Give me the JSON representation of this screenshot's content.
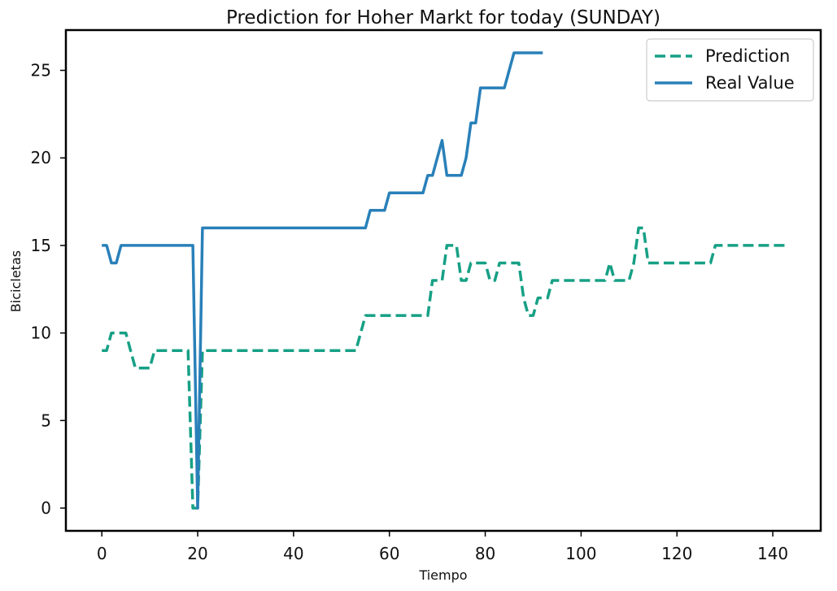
{
  "chart_data": {
    "type": "line",
    "title": "Prediction for Hoher Markt for today (SUNDAY)",
    "xlabel": "Tiempo",
    "ylabel": "Bicicletas",
    "xlim": [
      -7.5,
      150
    ],
    "ylim": [
      -1.3,
      27.3
    ],
    "xticks": [
      0,
      20,
      40,
      60,
      80,
      100,
      120,
      140
    ],
    "yticks": [
      0,
      5,
      10,
      15,
      20,
      25
    ],
    "grid": false,
    "legend_position": "top-right",
    "series": [
      {
        "name": "Prediction",
        "color": "#16a085",
        "style": "dashed",
        "points": [
          [
            0,
            9
          ],
          [
            1,
            9
          ],
          [
            2,
            10
          ],
          [
            3,
            10
          ],
          [
            4,
            10
          ],
          [
            5,
            10
          ],
          [
            6,
            9
          ],
          [
            7,
            8
          ],
          [
            8,
            8
          ],
          [
            9,
            8
          ],
          [
            10,
            8
          ],
          [
            11,
            9
          ],
          [
            12,
            9
          ],
          [
            13,
            9
          ],
          [
            14,
            9
          ],
          [
            15,
            9
          ],
          [
            16,
            9
          ],
          [
            17,
            9
          ],
          [
            18,
            9
          ],
          [
            19,
            0
          ],
          [
            20,
            0
          ],
          [
            21,
            9
          ],
          [
            22,
            9
          ],
          [
            30,
            9
          ],
          [
            40,
            9
          ],
          [
            50,
            9
          ],
          [
            53,
            9
          ],
          [
            54,
            10
          ],
          [
            55,
            11
          ],
          [
            56,
            11
          ],
          [
            60,
            11
          ],
          [
            65,
            11
          ],
          [
            68,
            11
          ],
          [
            69,
            13
          ],
          [
            70,
            13
          ],
          [
            71,
            13
          ],
          [
            72,
            15
          ],
          [
            73,
            15
          ],
          [
            74,
            15
          ],
          [
            75,
            13
          ],
          [
            76,
            13
          ],
          [
            77,
            14
          ],
          [
            78,
            14
          ],
          [
            79,
            14
          ],
          [
            80,
            14
          ],
          [
            81,
            13
          ],
          [
            82,
            13
          ],
          [
            83,
            14
          ],
          [
            84,
            14
          ],
          [
            85,
            14
          ],
          [
            86,
            14
          ],
          [
            87,
            14
          ],
          [
            88,
            12
          ],
          [
            89,
            11
          ],
          [
            90,
            11
          ],
          [
            91,
            12
          ],
          [
            92,
            12
          ],
          [
            93,
            12
          ],
          [
            94,
            13
          ],
          [
            95,
            13
          ],
          [
            100,
            13
          ],
          [
            105,
            13
          ],
          [
            106,
            14
          ],
          [
            107,
            13
          ],
          [
            108,
            13
          ],
          [
            109,
            13
          ],
          [
            110,
            13
          ],
          [
            111,
            14
          ],
          [
            112,
            16
          ],
          [
            113,
            16
          ],
          [
            114,
            14
          ],
          [
            115,
            14
          ],
          [
            120,
            14
          ],
          [
            125,
            14
          ],
          [
            127,
            14
          ],
          [
            128,
            15
          ],
          [
            129,
            15
          ],
          [
            135,
            15
          ],
          [
            140,
            15
          ],
          [
            143,
            15
          ]
        ]
      },
      {
        "name": "Real Value",
        "color": "#2980b9",
        "style": "solid",
        "points": [
          [
            0,
            15
          ],
          [
            1,
            15
          ],
          [
            2,
            14
          ],
          [
            3,
            14
          ],
          [
            4,
            15
          ],
          [
            5,
            15
          ],
          [
            10,
            15
          ],
          [
            15,
            15
          ],
          [
            18,
            15
          ],
          [
            19,
            15
          ],
          [
            20,
            0
          ],
          [
            21,
            16
          ],
          [
            22,
            16
          ],
          [
            30,
            16
          ],
          [
            40,
            16
          ],
          [
            50,
            16
          ],
          [
            55,
            16
          ],
          [
            56,
            17
          ],
          [
            57,
            17
          ],
          [
            58,
            17
          ],
          [
            59,
            17
          ],
          [
            60,
            18
          ],
          [
            61,
            18
          ],
          [
            65,
            18
          ],
          [
            67,
            18
          ],
          [
            68,
            19
          ],
          [
            69,
            19
          ],
          [
            70,
            20
          ],
          [
            71,
            21
          ],
          [
            72,
            19
          ],
          [
            73,
            19
          ],
          [
            74,
            19
          ],
          [
            75,
            19
          ],
          [
            76,
            20
          ],
          [
            77,
            22
          ],
          [
            78,
            22
          ],
          [
            79,
            24
          ],
          [
            80,
            24
          ],
          [
            84,
            24
          ],
          [
            85,
            25
          ],
          [
            86,
            26
          ],
          [
            87,
            26
          ],
          [
            92,
            26
          ]
        ]
      }
    ]
  }
}
